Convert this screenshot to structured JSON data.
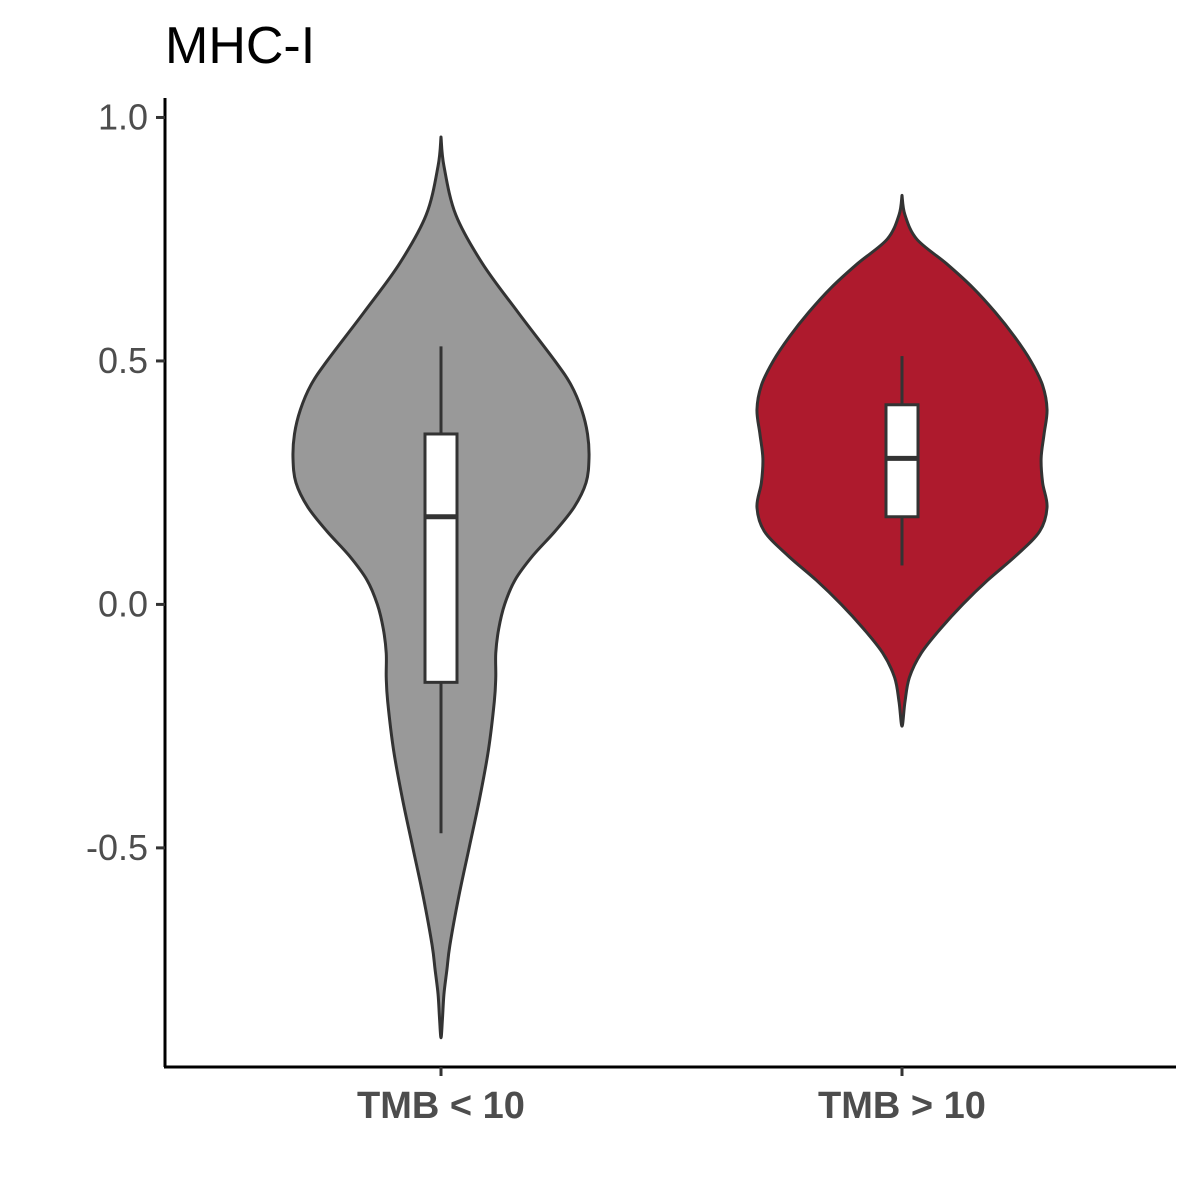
{
  "chart_data": {
    "type": "violin",
    "title": "MHC-I",
    "xlabel": "",
    "ylabel": "",
    "ylim": [
      -0.95,
      1.04
    ],
    "yticks": [
      {
        "value": 1.0,
        "label": "1.0"
      },
      {
        "value": 0.5,
        "label": "0.5"
      },
      {
        "value": 0.0,
        "label": "0.0"
      },
      {
        "value": -0.5,
        "label": "-0.5"
      }
    ],
    "categories": [
      "TMB < 10",
      "TMB > 10"
    ],
    "grid": false,
    "legend": "none",
    "groups": [
      {
        "category": "TMB < 10",
        "color": "#999999",
        "violin_range": [
          -0.89,
          0.96
        ],
        "density": [
          [
            0.96,
            0.0
          ],
          [
            0.9,
            0.02
          ],
          [
            0.8,
            0.1
          ],
          [
            0.7,
            0.28
          ],
          [
            0.6,
            0.52
          ],
          [
            0.5,
            0.77
          ],
          [
            0.45,
            0.88
          ],
          [
            0.4,
            0.95
          ],
          [
            0.35,
            0.99
          ],
          [
            0.3,
            1.0
          ],
          [
            0.25,
            0.98
          ],
          [
            0.2,
            0.9
          ],
          [
            0.15,
            0.77
          ],
          [
            0.1,
            0.62
          ],
          [
            0.05,
            0.5
          ],
          [
            0.0,
            0.43
          ],
          [
            -0.05,
            0.39
          ],
          [
            -0.1,
            0.37
          ],
          [
            -0.15,
            0.37
          ],
          [
            -0.2,
            0.36
          ],
          [
            -0.3,
            0.32
          ],
          [
            -0.4,
            0.26
          ],
          [
            -0.5,
            0.19
          ],
          [
            -0.6,
            0.12
          ],
          [
            -0.7,
            0.06
          ],
          [
            -0.75,
            0.04
          ],
          [
            -0.8,
            0.02
          ],
          [
            -0.85,
            0.01
          ],
          [
            -0.89,
            0.0
          ]
        ],
        "box": {
          "whisker_low": -0.47,
          "q1": -0.16,
          "median": 0.18,
          "q3": 0.35,
          "whisker_high": 0.53
        }
      },
      {
        "category": "TMB > 10",
        "color": "#AE1A2D",
        "violin_range": [
          -0.25,
          0.84
        ],
        "density": [
          [
            0.84,
            0.0
          ],
          [
            0.8,
            0.02
          ],
          [
            0.75,
            0.1
          ],
          [
            0.7,
            0.3
          ],
          [
            0.65,
            0.48
          ],
          [
            0.6,
            0.63
          ],
          [
            0.55,
            0.76
          ],
          [
            0.5,
            0.87
          ],
          [
            0.45,
            0.95
          ],
          [
            0.4,
            0.98
          ],
          [
            0.35,
            0.96
          ],
          [
            0.3,
            0.94
          ],
          [
            0.25,
            0.95
          ],
          [
            0.2,
            0.98
          ],
          [
            0.15,
            0.93
          ],
          [
            0.1,
            0.77
          ],
          [
            0.05,
            0.58
          ],
          [
            0.0,
            0.41
          ],
          [
            -0.05,
            0.26
          ],
          [
            -0.1,
            0.13
          ],
          [
            -0.15,
            0.05
          ],
          [
            -0.2,
            0.02
          ],
          [
            -0.25,
            0.0
          ]
        ],
        "box": {
          "whisker_low": 0.08,
          "q1": 0.18,
          "median": 0.3,
          "q3": 0.41,
          "whisker_high": 0.51
        }
      }
    ]
  }
}
